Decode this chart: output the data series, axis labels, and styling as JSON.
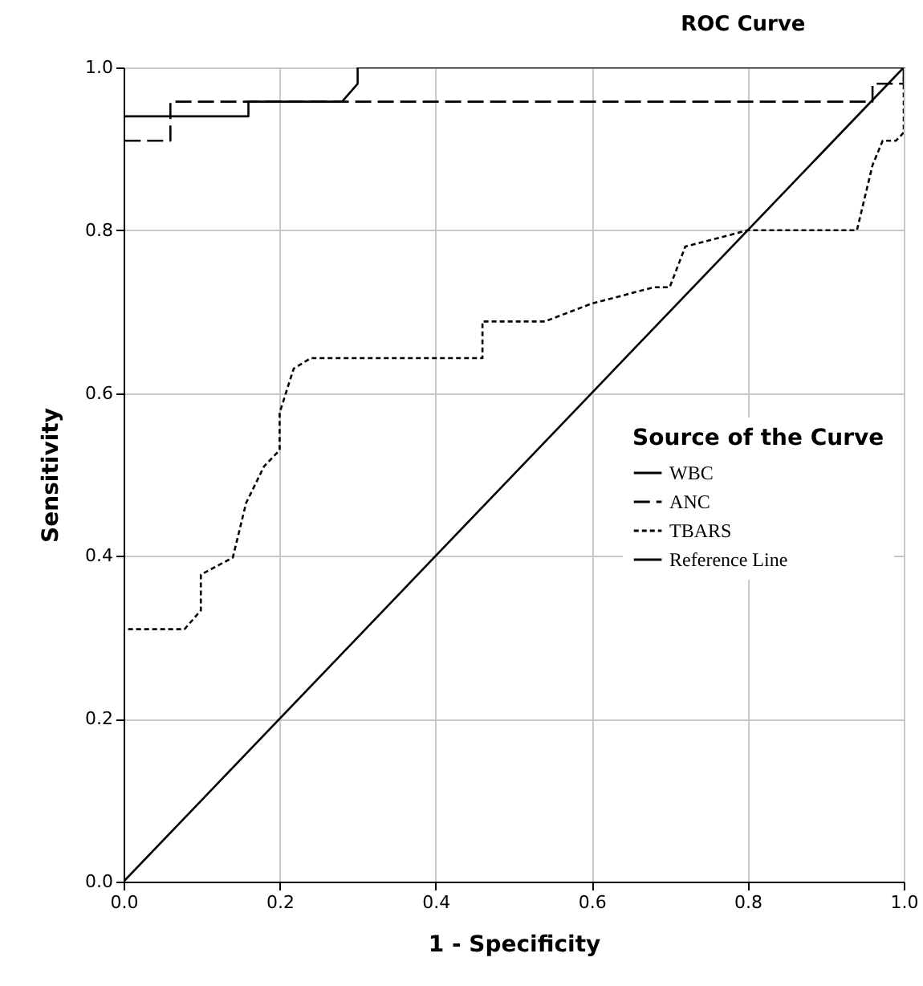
{
  "chart_data": {
    "type": "line",
    "title": "ROC Curve",
    "xlabel": "1 - Specificity",
    "ylabel": "Sensitivity",
    "legend_title": "Source of the Curve",
    "xlim": [
      0,
      1
    ],
    "ylim": [
      0,
      1
    ],
    "xticks": [
      {
        "value": 0,
        "label": "0.0"
      },
      {
        "value": 0.2,
        "label": "0.2"
      },
      {
        "value": 0.4,
        "label": "0.4"
      },
      {
        "value": 0.6,
        "label": "0.6"
      },
      {
        "value": 0.8,
        "label": "0.8"
      },
      {
        "value": 1,
        "label": "1.0"
      }
    ],
    "yticks": [
      {
        "value": 0,
        "label": "0.0"
      },
      {
        "value": 0.2,
        "label": "0.2"
      },
      {
        "value": 0.4,
        "label": "0.4"
      },
      {
        "value": 0.6,
        "label": "0.6"
      },
      {
        "value": 0.8,
        "label": "0.8"
      },
      {
        "value": 1,
        "label": "1.0"
      }
    ],
    "grid": true,
    "legend": "right",
    "marker": "none",
    "series": [
      {
        "name": "WBC",
        "color": "#000000",
        "line_style": "solid",
        "x": [
          0,
          0,
          0.16,
          0.16,
          0.28,
          0.3,
          0.3,
          1
        ],
        "values": [
          0,
          0.94,
          0.94,
          0.958,
          0.958,
          0.98,
          1,
          1
        ]
      },
      {
        "name": "ANC",
        "color": "#000000",
        "line_style": "dashed",
        "x": [
          0,
          0,
          0.06,
          0.06,
          0.96,
          0.96,
          1,
          1
        ],
        "values": [
          0,
          0.91,
          0.91,
          0.958,
          0.958,
          0.98,
          0.98,
          1
        ]
      },
      {
        "name": "TBARS",
        "color": "#000000",
        "line_style": "dotted",
        "x": [
          0,
          0,
          0.078,
          0.099,
          0.099,
          0.14,
          0.157,
          0.18,
          0.2,
          0.2,
          0.218,
          0.24,
          0.46,
          0.46,
          0.54,
          0.6,
          0.68,
          0.7,
          0.72,
          0.8,
          0.94,
          0.96,
          0.973,
          0.99,
          1,
          1
        ],
        "values": [
          0,
          0.31,
          0.31,
          0.333,
          0.377,
          0.398,
          0.465,
          0.51,
          0.53,
          0.576,
          0.63,
          0.643,
          0.643,
          0.688,
          0.688,
          0.71,
          0.73,
          0.73,
          0.78,
          0.8,
          0.8,
          0.88,
          0.91,
          0.91,
          0.92,
          1
        ]
      },
      {
        "name": "Reference Line",
        "color": "#000000",
        "line_style": "solid",
        "x": [
          0,
          1
        ],
        "values": [
          0,
          1
        ]
      }
    ]
  }
}
